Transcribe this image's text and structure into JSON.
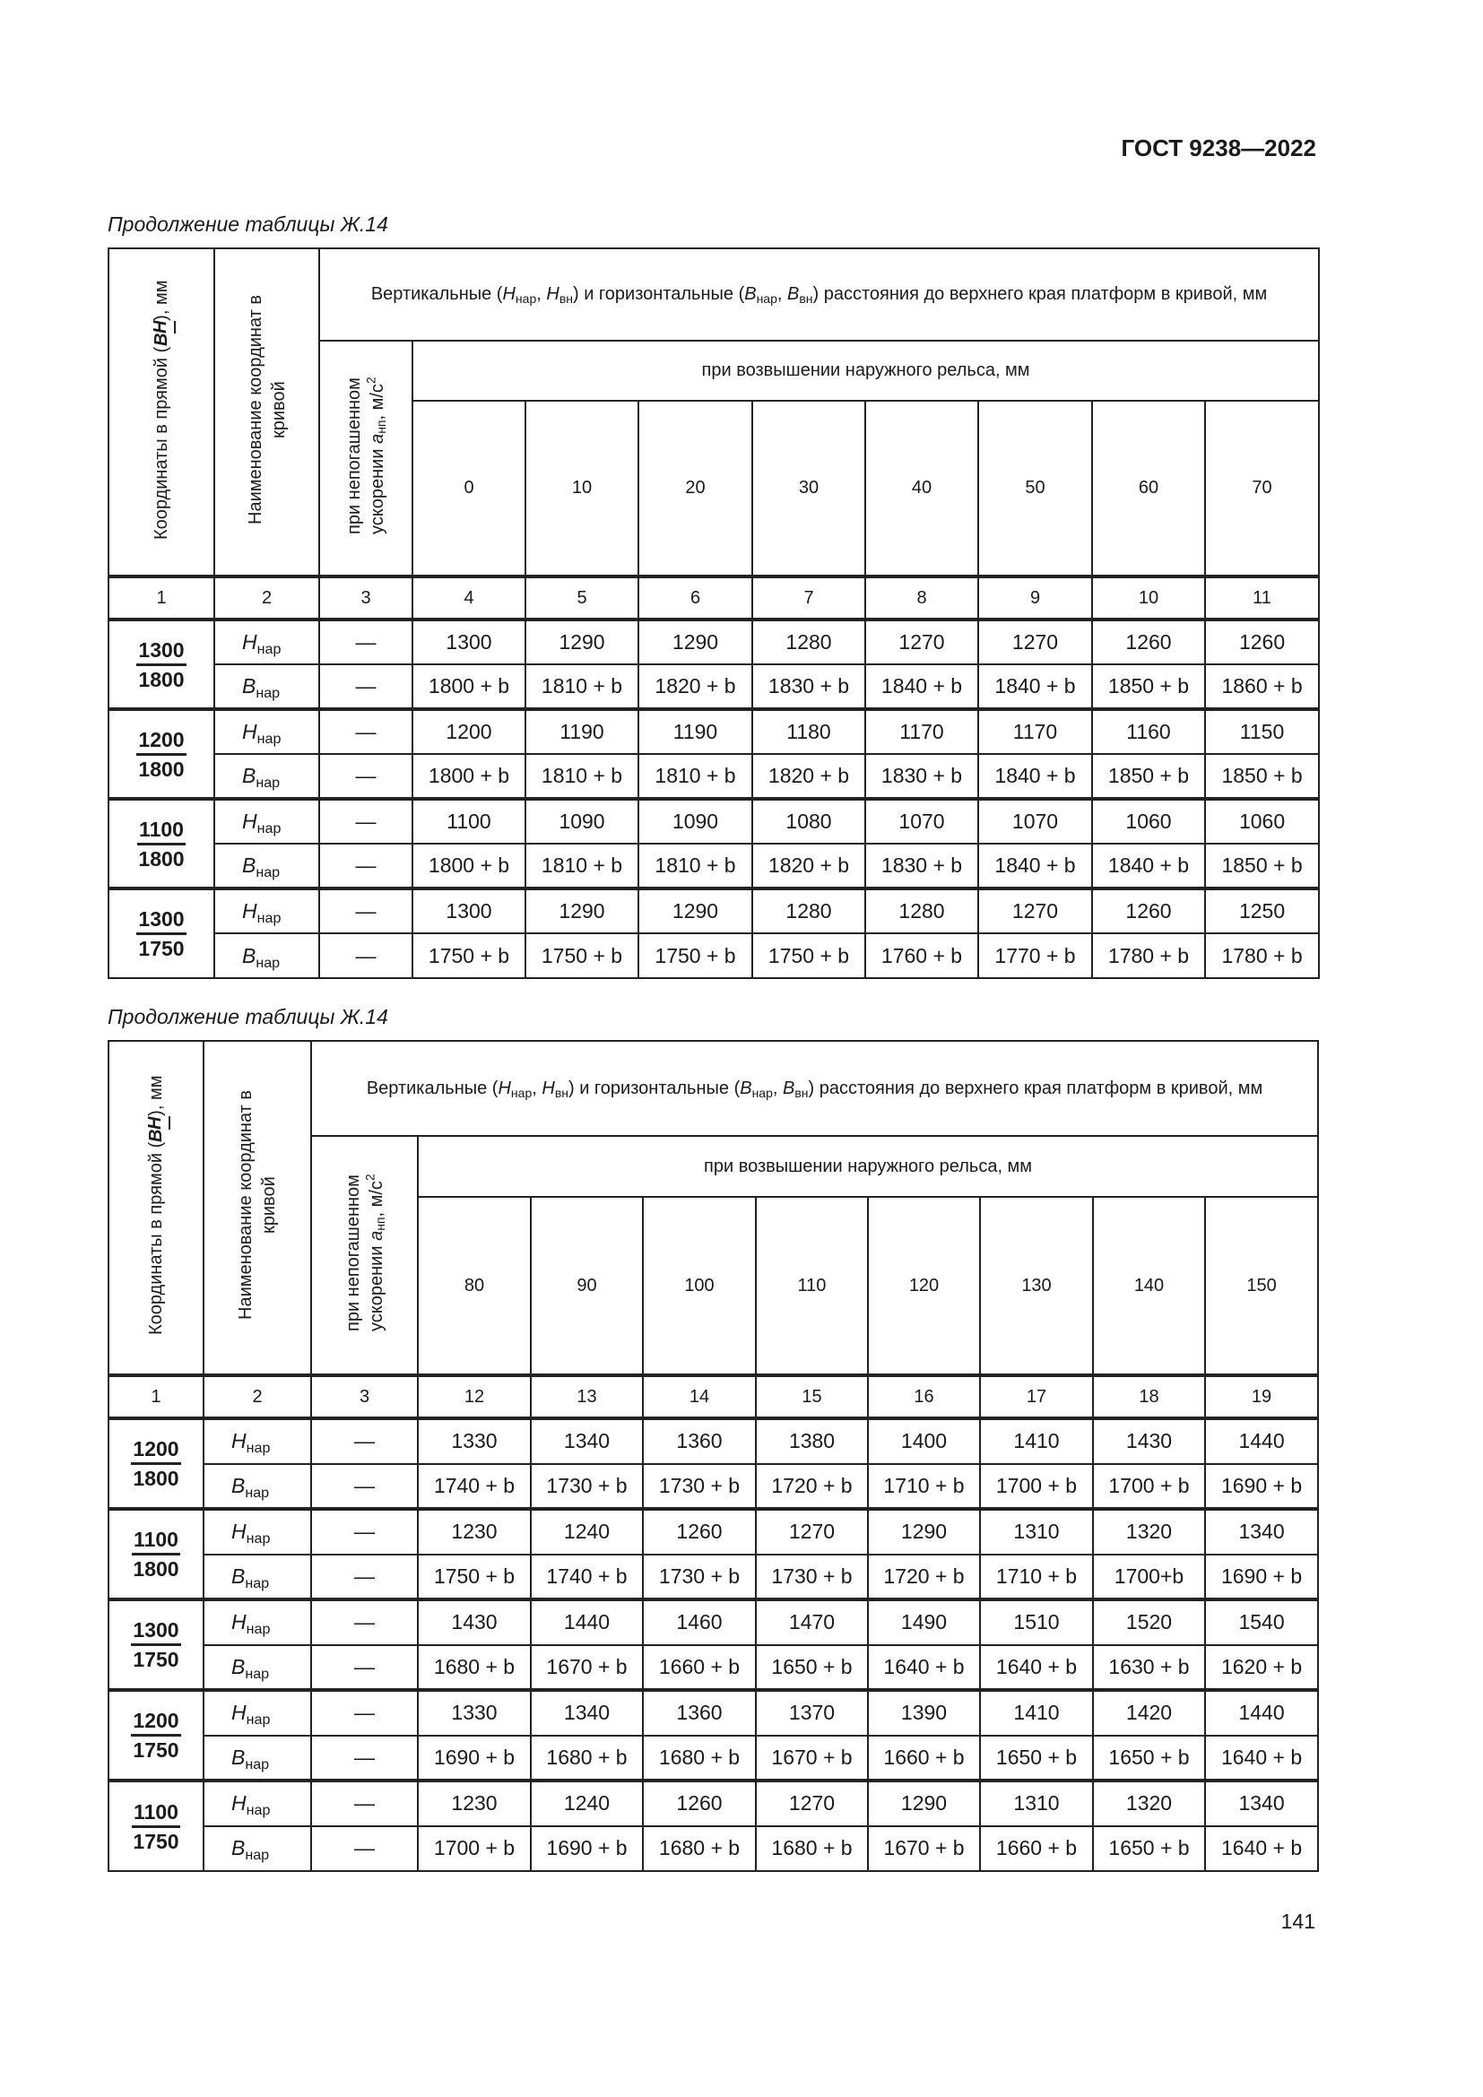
{
  "document": {
    "code": "ГОСТ 9238—2022",
    "page_number": "141"
  },
  "tables": [
    {
      "caption": "Продолжение таблицы Ж.14",
      "header": {
        "coord_label": [
          "Координаты в прямой ",
          "H",
          "B",
          ", мм"
        ],
        "name_label": "Наименование координат в кривой",
        "accel_label": [
          "при непогашенном ускорении ",
          "a",
          "нп",
          ", м/с",
          "2"
        ],
        "main_label": [
          {
            "t": "Вертикальные ("
          },
          {
            "i": "H",
            "s": "нар"
          },
          {
            "t": ", "
          },
          {
            "i": "H",
            "s": "вн"
          },
          {
            "t": ") и горизонтальные ("
          },
          {
            "i": "B",
            "s": "нар"
          },
          {
            "t": ", "
          },
          {
            "i": "B",
            "s": "вн"
          },
          {
            "t": ") расстояния до верхнего края платформ в кривой, мм"
          }
        ],
        "sub_label": "при возвышении наружного рельса, мм",
        "elevations": [
          "0",
          "10",
          "20",
          "30",
          "40",
          "50",
          "60",
          "70"
        ],
        "col_numbers": [
          "1",
          "2",
          "3",
          "4",
          "5",
          "6",
          "7",
          "8",
          "9",
          "10",
          "11"
        ]
      },
      "groups": [
        {
          "h": "1300",
          "b": "1800",
          "rows": [
            {
              "label": "H",
              "sub": "нар",
              "col3": "—",
              "values": [
                "1300",
                "1290",
                "1290",
                "1280",
                "1270",
                "1270",
                "1260",
                "1260"
              ]
            },
            {
              "label": "B",
              "sub": "нар",
              "col3": "—",
              "values": [
                "1800 + b",
                "1810 + b",
                "1820 + b",
                "1830 + b",
                "1840 + b",
                "1840 + b",
                "1850 + b",
                "1860 + b"
              ]
            }
          ]
        },
        {
          "h": "1200",
          "b": "1800",
          "rows": [
            {
              "label": "H",
              "sub": "нар",
              "col3": "—",
              "values": [
                "1200",
                "1190",
                "1190",
                "1180",
                "1170",
                "1170",
                "1160",
                "1150"
              ]
            },
            {
              "label": "B",
              "sub": "нар",
              "col3": "—",
              "values": [
                "1800 + b",
                "1810 + b",
                "1810 + b",
                "1820 + b",
                "1830 + b",
                "1840 + b",
                "1850 + b",
                "1850 + b"
              ]
            }
          ]
        },
        {
          "h": "1100",
          "b": "1800",
          "rows": [
            {
              "label": "H",
              "sub": "нар",
              "col3": "—",
              "values": [
                "1100",
                "1090",
                "1090",
                "1080",
                "1070",
                "1070",
                "1060",
                "1060"
              ]
            },
            {
              "label": "B",
              "sub": "нар",
              "col3": "—",
              "values": [
                "1800 + b",
                "1810 + b",
                "1810 + b",
                "1820 + b",
                "1830 + b",
                "1840 + b",
                "1840 + b",
                "1850 + b"
              ]
            }
          ]
        },
        {
          "h": "1300",
          "b": "1750",
          "rows": [
            {
              "label": "H",
              "sub": "нар",
              "col3": "—",
              "values": [
                "1300",
                "1290",
                "1290",
                "1280",
                "1280",
                "1270",
                "1260",
                "1250"
              ]
            },
            {
              "label": "B",
              "sub": "нар",
              "col3": "—",
              "values": [
                "1750 + b",
                "1750 + b",
                "1750 + b",
                "1750 + b",
                "1760 + b",
                "1770 + b",
                "1780 + b",
                "1780 + b"
              ]
            }
          ]
        }
      ]
    },
    {
      "caption": "Продолжение таблицы Ж.14",
      "header": {
        "coord_label": [
          "Координаты в прямой ",
          "H",
          "B",
          ", мм"
        ],
        "name_label": "Наименование координат в кривой",
        "accel_label": [
          "при непогашенном ускорении ",
          "a",
          "нп",
          ", м/с",
          "2"
        ],
        "main_label": [
          {
            "t": "Вертикальные ("
          },
          {
            "i": "H",
            "s": "нар"
          },
          {
            "t": ", "
          },
          {
            "i": "H",
            "s": "вн"
          },
          {
            "t": ") и горизонтальные ("
          },
          {
            "i": "B",
            "s": "нар"
          },
          {
            "t": ", "
          },
          {
            "i": "B",
            "s": "вн"
          },
          {
            "t": ") расстояния до верхнего края платформ в кривой, мм"
          }
        ],
        "sub_label": "при возвышении наружного рельса, мм",
        "elevations": [
          "80",
          "90",
          "100",
          "110",
          "120",
          "130",
          "140",
          "150"
        ],
        "col_numbers": [
          "1",
          "2",
          "3",
          "12",
          "13",
          "14",
          "15",
          "16",
          "17",
          "18",
          "19"
        ]
      },
      "groups": [
        {
          "h": "1200",
          "b": "1800",
          "rows": [
            {
              "label": "H",
              "sub": "нар",
              "col3": "—",
              "values": [
                "1330",
                "1340",
                "1360",
                "1380",
                "1400",
                "1410",
                "1430",
                "1440"
              ]
            },
            {
              "label": "B",
              "sub": "нар",
              "col3": "—",
              "values": [
                "1740 + b",
                "1730 + b",
                "1730 + b",
                "1720 + b",
                "1710 + b",
                "1700 + b",
                "1700 + b",
                "1690 + b"
              ]
            }
          ]
        },
        {
          "h": "1100",
          "b": "1800",
          "rows": [
            {
              "label": "H",
              "sub": "нар",
              "col3": "—",
              "values": [
                "1230",
                "1240",
                "1260",
                "1270",
                "1290",
                "1310",
                "1320",
                "1340"
              ]
            },
            {
              "label": "B",
              "sub": "нар",
              "col3": "—",
              "values": [
                "1750 + b",
                "1740 + b",
                "1730 + b",
                "1730 + b",
                "1720 + b",
                "1710 + b",
                "1700+b",
                "1690 + b"
              ]
            }
          ]
        },
        {
          "h": "1300",
          "b": "1750",
          "rows": [
            {
              "label": "H",
              "sub": "нар",
              "col3": "—",
              "values": [
                "1430",
                "1440",
                "1460",
                "1470",
                "1490",
                "1510",
                "1520",
                "1540"
              ]
            },
            {
              "label": "B",
              "sub": "нар",
              "col3": "—",
              "values": [
                "1680 + b",
                "1670 + b",
                "1660 + b",
                "1650 + b",
                "1640 + b",
                "1640 + b",
                "1630 + b",
                "1620 + b"
              ]
            }
          ]
        },
        {
          "h": "1200",
          "b": "1750",
          "rows": [
            {
              "label": "H",
              "sub": "нар",
              "col3": "—",
              "values": [
                "1330",
                "1340",
                "1360",
                "1370",
                "1390",
                "1410",
                "1420",
                "1440"
              ]
            },
            {
              "label": "B",
              "sub": "нар",
              "col3": "—",
              "values": [
                "1690 + b",
                "1680 + b",
                "1680 + b",
                "1670 + b",
                "1660 + b",
                "1650 + b",
                "1650 + b",
                "1640 + b"
              ]
            }
          ]
        },
        {
          "h": "1100",
          "b": "1750",
          "rows": [
            {
              "label": "H",
              "sub": "нар",
              "col3": "—",
              "values": [
                "1230",
                "1240",
                "1260",
                "1270",
                "1290",
                "1310",
                "1320",
                "1340"
              ]
            },
            {
              "label": "B",
              "sub": "нар",
              "col3": "—",
              "values": [
                "1700 + b",
                "1690 + b",
                "1680 + b",
                "1680 + b",
                "1670 + b",
                "1660 + b",
                "1650 + b",
                "1640 + b"
              ]
            }
          ]
        }
      ]
    }
  ]
}
